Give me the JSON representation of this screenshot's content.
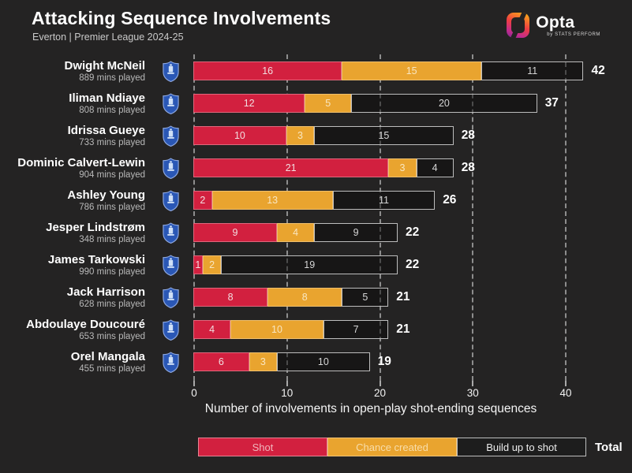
{
  "header": {
    "title": "Attacking Sequence Involvements",
    "subtitle": "Everton | Premier League 2024-25",
    "logo": {
      "text": "Opta",
      "tagline": "by STATS PERFORM"
    }
  },
  "colors": {
    "background": "#242323",
    "shot": "#d2203f",
    "chance_created": "#e9a42f",
    "build_up": "rgba(10,10,10,0.5)",
    "build_up_border": "#bdbdbd",
    "gridline": "#8d8d8d",
    "label_on_shot": "#f2dde0",
    "label_on_chance": "#f9e6c0",
    "label_on_build_up": "#d6d6d6",
    "legend_text_shot": "#f0b6bd",
    "legend_text_chance": "#f8ddaa",
    "legend_text_build_up": "#ececec",
    "everton_badge_blue": "#2a57b5"
  },
  "chart_data": {
    "type": "bar",
    "orientation": "horizontal",
    "stacked": true,
    "title": "Attacking Sequence Involvements",
    "subtitle": "Everton | Premier League 2024-25",
    "xlabel": "Number of involvements in open-play shot-ending sequences",
    "xlim": [
      0,
      40
    ],
    "x_ticks": [
      0,
      10,
      20,
      30,
      40
    ],
    "grid": "dashed-vertical",
    "series_names": [
      "Shot",
      "Chance created",
      "Build up to shot"
    ],
    "players": [
      {
        "name": "Dwight McNeil",
        "mins": "889 mins played",
        "shot": 16,
        "chance_created": 15,
        "build_up": 11,
        "total": 42
      },
      {
        "name": "Iliman Ndiaye",
        "mins": "808 mins played",
        "shot": 12,
        "chance_created": 5,
        "build_up": 20,
        "total": 37
      },
      {
        "name": "Idrissa Gueye",
        "mins": "733 mins played",
        "shot": 10,
        "chance_created": 3,
        "build_up": 15,
        "total": 28
      },
      {
        "name": "Dominic Calvert-Lewin",
        "mins": "904 mins played",
        "shot": 21,
        "chance_created": 3,
        "build_up": 4,
        "total": 28
      },
      {
        "name": "Ashley Young",
        "mins": "786 mins played",
        "shot": 2,
        "chance_created": 13,
        "build_up": 11,
        "total": 26
      },
      {
        "name": "Jesper Lindstrøm",
        "mins": "348 mins played",
        "shot": 9,
        "chance_created": 4,
        "build_up": 9,
        "total": 22
      },
      {
        "name": "James Tarkowski",
        "mins": "990 mins played",
        "shot": 1,
        "chance_created": 2,
        "build_up": 19,
        "total": 22
      },
      {
        "name": "Jack Harrison",
        "mins": "628 mins played",
        "shot": 8,
        "chance_created": 8,
        "build_up": 5,
        "total": 21
      },
      {
        "name": "Abdoulaye Doucouré",
        "mins": "653 mins played",
        "shot": 4,
        "chance_created": 10,
        "build_up": 7,
        "total": 21
      },
      {
        "name": "Orel Mangala",
        "mins": "455 mins played",
        "shot": 6,
        "chance_created": 3,
        "build_up": 10,
        "total": 19
      }
    ],
    "legend": {
      "items": [
        {
          "label": "Shot"
        },
        {
          "label": "Chance created"
        },
        {
          "label": "Build up to shot"
        }
      ],
      "total_label": "Total",
      "position": "bottom"
    }
  }
}
